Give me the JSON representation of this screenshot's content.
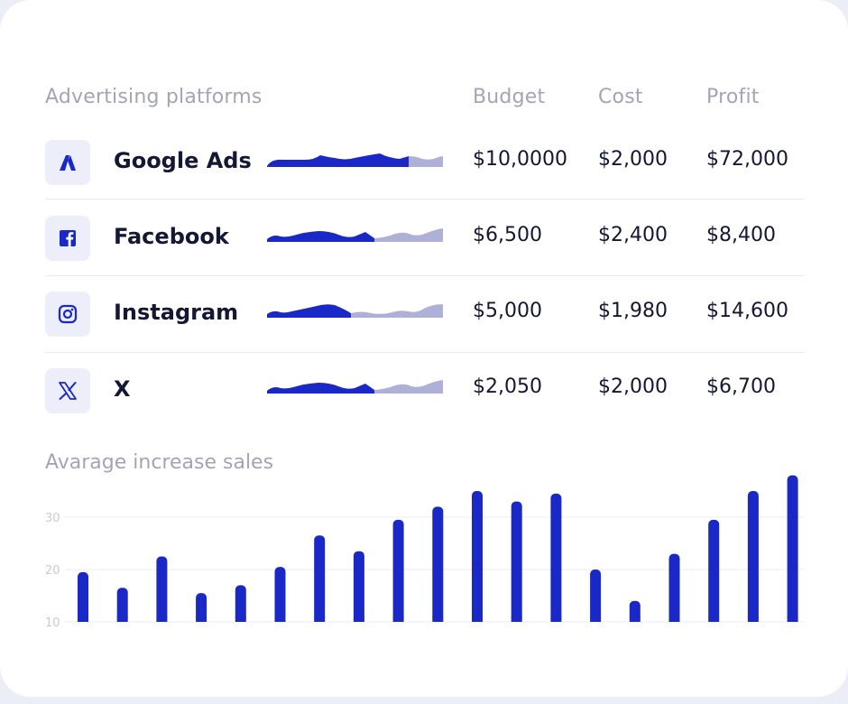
{
  "table": {
    "headers": {
      "platform": "Advertising platforms",
      "budget": "Budget",
      "cost": "Cost",
      "profit": "Profit"
    },
    "rows": [
      {
        "icon": "google-ads-icon",
        "name": "Google Ads",
        "budget": "$10,0000",
        "cost": "$2,000",
        "profit": "$72,000"
      },
      {
        "icon": "facebook-icon",
        "name": "Facebook",
        "budget": "$6,500",
        "cost": "$2,400",
        "profit": "$8,400"
      },
      {
        "icon": "instagram-icon",
        "name": "Instagram",
        "budget": "$5,000",
        "cost": "$1,980",
        "profit": "$14,600"
      },
      {
        "icon": "x-icon",
        "name": "X",
        "budget": "$2,050",
        "cost": "$2,000",
        "profit": "$6,700"
      }
    ]
  },
  "colors": {
    "accent": "#1a28c8",
    "accent_light": "#aeb0d8",
    "text": "#141833",
    "muted": "#a3a5b6"
  },
  "chart_data": {
    "type": "bar",
    "title": "Avarage increase sales",
    "yticks": [
      10,
      20,
      30
    ],
    "ylim": [
      10,
      37
    ],
    "grid": true,
    "values": [
      19.5,
      16.5,
      22.5,
      15.5,
      17,
      20.5,
      26.5,
      23.5,
      29.5,
      32,
      35,
      33,
      34.5,
      20,
      14,
      23,
      29.5,
      35,
      38
    ]
  }
}
